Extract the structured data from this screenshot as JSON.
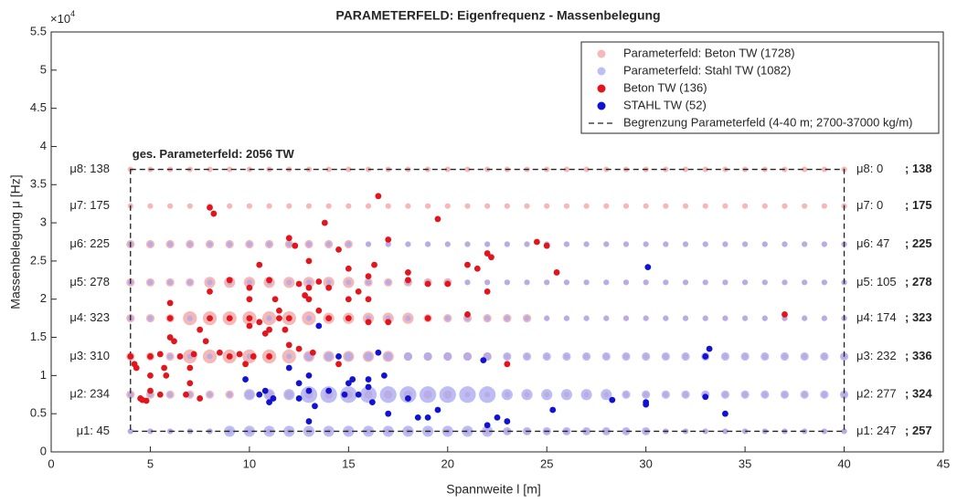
{
  "chart_data": {
    "type": "scatter",
    "title": "PARAMETERFELD: Eigenfrequenz - Massenbelegung",
    "xlabel": "Spannweite l [m]",
    "ylabel": "Massenbelegung μ [Hz]",
    "y_exponent": {
      "base": "×10",
      "power": "4"
    },
    "annotation": "ges. Parameterfeld: 2056 TW",
    "xlim": [
      0,
      45
    ],
    "xticks": [
      0,
      5,
      10,
      15,
      20,
      25,
      30,
      35,
      40,
      45
    ],
    "ylim": [
      0,
      55000
    ],
    "yticks": [
      0,
      {
        "value": 5000,
        "label": "0.5"
      },
      {
        "value": 10000,
        "label": "1"
      },
      {
        "value": 15000,
        "label": "1.5"
      },
      {
        "value": 20000,
        "label": "2"
      },
      {
        "value": 25000,
        "label": "2.5"
      },
      {
        "value": 30000,
        "label": "3"
      },
      {
        "value": 35000,
        "label": "3.5"
      },
      {
        "value": 40000,
        "label": "4"
      },
      {
        "value": 45000,
        "label": "4.5"
      },
      {
        "value": 50000,
        "label": "5"
      },
      {
        "value": 55000,
        "label": "5.5"
      }
    ],
    "legend": "upper right",
    "field": [
      {
        "name": "Parameterfeld: Beton TW (1728)",
        "color": "#f3a0a0",
        "x": [
          4,
          5,
          6,
          7,
          8,
          9,
          10,
          11,
          12,
          13,
          14,
          15,
          16,
          17,
          18,
          19,
          20,
          21,
          22,
          23,
          24,
          25,
          26,
          27,
          28,
          29,
          30,
          31,
          32,
          33,
          34,
          35,
          36,
          37,
          38,
          39,
          40
        ],
        "rows": [
          2700,
          7500,
          12500,
          17500,
          22200,
          27200,
          32200,
          37000
        ],
        "sizes": [
          [
            1,
            1,
            1,
            1,
            1,
            1,
            1,
            1,
            1,
            1,
            1,
            1,
            1,
            1,
            1,
            1,
            1,
            1,
            1,
            1,
            1,
            1,
            1,
            1,
            1,
            1,
            1,
            1,
            1,
            1,
            1,
            1,
            1,
            1,
            1,
            1,
            1
          ],
          [
            2,
            2,
            2,
            2,
            2,
            2,
            2,
            2,
            2,
            2,
            2,
            2,
            2,
            2,
            2,
            2,
            2,
            1,
            1,
            1,
            1,
            1,
            1,
            1,
            1,
            1,
            1,
            1,
            1,
            1,
            1,
            1,
            1,
            1,
            1,
            1,
            1
          ],
          [
            2,
            2,
            2,
            4,
            4,
            4,
            4,
            4,
            4,
            3,
            3,
            3,
            3,
            3,
            2,
            2,
            2,
            2,
            2,
            1,
            1,
            1,
            1,
            1,
            1,
            1,
            1,
            1,
            1,
            1,
            1,
            1,
            1,
            1,
            1,
            1,
            1
          ],
          [
            2,
            2,
            2,
            4,
            4,
            4,
            4,
            4,
            4,
            4,
            3,
            3,
            3,
            3,
            3,
            2,
            2,
            2,
            2,
            2,
            2,
            1,
            1,
            1,
            1,
            1,
            1,
            1,
            1,
            1,
            1,
            1,
            1,
            1,
            1,
            1,
            1
          ],
          [
            2,
            2,
            2,
            2,
            3,
            3,
            3,
            3,
            3,
            3,
            3,
            3,
            2,
            2,
            2,
            2,
            2,
            1,
            1,
            1,
            1,
            1,
            1,
            1,
            1,
            1,
            1,
            1,
            1,
            1,
            1,
            1,
            1,
            1,
            1,
            1,
            1
          ],
          [
            2,
            2,
            2,
            2,
            2,
            2,
            2,
            2,
            2,
            2,
            2,
            2,
            1,
            1,
            1,
            1,
            1,
            1,
            1,
            1,
            1,
            1,
            1,
            1,
            1,
            1,
            1,
            1,
            1,
            1,
            1,
            1,
            1,
            1,
            1,
            1,
            1
          ],
          [
            1,
            1,
            1,
            1,
            1,
            1,
            1,
            1,
            1,
            1,
            1,
            1,
            1,
            1,
            1,
            1,
            1,
            1,
            1,
            1,
            1,
            1,
            1,
            1,
            1,
            1,
            1,
            1,
            1,
            1,
            1,
            1,
            1,
            1,
            1,
            1,
            1
          ],
          [
            1,
            1,
            1,
            1,
            1,
            1,
            1,
            1,
            1,
            1,
            1,
            1,
            1,
            1,
            1,
            1,
            1,
            1,
            1,
            1,
            1,
            1,
            1,
            1,
            1,
            1,
            1,
            1,
            1,
            1,
            1,
            1,
            1,
            1,
            1,
            1,
            1
          ]
        ]
      },
      {
        "name": "Parameterfeld: Stahl TW (1082)",
        "color": "#a8a8f2",
        "x": [
          4,
          5,
          6,
          7,
          8,
          9,
          10,
          11,
          12,
          13,
          14,
          15,
          16,
          17,
          18,
          19,
          20,
          21,
          22,
          23,
          24,
          25,
          26,
          27,
          28,
          29,
          30,
          31,
          32,
          33,
          34,
          35,
          36,
          37,
          38,
          39,
          40
        ],
        "rows": [
          2700,
          7500,
          12500,
          17500,
          22200,
          27200
        ],
        "sizes": [
          [
            1,
            1,
            1,
            1,
            1,
            3,
            3,
            3,
            3,
            3,
            3,
            3,
            3,
            3,
            3,
            3,
            3,
            3,
            3,
            2,
            2,
            2,
            2,
            2,
            2,
            2,
            2,
            1,
            1,
            1,
            1,
            1,
            1,
            1,
            1,
            1,
            1
          ],
          [
            1,
            1,
            1,
            1,
            1,
            1,
            3,
            3,
            3,
            5,
            5,
            5,
            5,
            5,
            5,
            5,
            5,
            5,
            5,
            3,
            3,
            3,
            3,
            3,
            3,
            2,
            2,
            2,
            2,
            2,
            2,
            2,
            2,
            2,
            2,
            2,
            2
          ],
          [
            1,
            1,
            1,
            1,
            1,
            1,
            1,
            1,
            1,
            2,
            2,
            2,
            2,
            2,
            2,
            2,
            2,
            2,
            2,
            2,
            2,
            2,
            2,
            2,
            2,
            2,
            2,
            2,
            2,
            2,
            2,
            2,
            2,
            2,
            2,
            2,
            2
          ],
          [
            1,
            1,
            1,
            1,
            1,
            1,
            1,
            1,
            1,
            1,
            1,
            1,
            1,
            1,
            1,
            1,
            1,
            1,
            1,
            1,
            1,
            1,
            1,
            1,
            1,
            1,
            1,
            1,
            1,
            1,
            1,
            1,
            1,
            1,
            1,
            1,
            1
          ],
          [
            1,
            1,
            1,
            1,
            1,
            1,
            1,
            1,
            1,
            1,
            1,
            1,
            1,
            1,
            1,
            1,
            1,
            1,
            1,
            1,
            1,
            1,
            1,
            1,
            1,
            1,
            1,
            1,
            1,
            1,
            1,
            1,
            1,
            1,
            1,
            1,
            1
          ],
          [
            1,
            1,
            1,
            1,
            1,
            1,
            1,
            1,
            1,
            1,
            1,
            1,
            1,
            1,
            1,
            1,
            1,
            1,
            1,
            1,
            1,
            1,
            1,
            1,
            1,
            1,
            1,
            1,
            1,
            1,
            1,
            1,
            1,
            1,
            1,
            1,
            1
          ]
        ]
      }
    ],
    "series": [
      {
        "name": "Beton TW (136)",
        "color": "#e4141c",
        "x": [
          4,
          4.2,
          4.3,
          4.5,
          4.6,
          4.8,
          5,
          5,
          5,
          5.5,
          5.5,
          5.7,
          5.8,
          6,
          6,
          6,
          6.2,
          6.5,
          6.8,
          7,
          7,
          7.2,
          7.5,
          7.5,
          7.8,
          8,
          8,
          8,
          8.2,
          8.5,
          9,
          9,
          9,
          9.5,
          9.8,
          10,
          10,
          10,
          10,
          10.2,
          10.5,
          10.5,
          10.8,
          11,
          11,
          11,
          11.3,
          11.5,
          11.5,
          11.8,
          12,
          12,
          12,
          12.3,
          12.5,
          12.5,
          12.8,
          13,
          13,
          13,
          13.2,
          13.5,
          13.5,
          13.8,
          14,
          14,
          14.5,
          14.5,
          15,
          15,
          15,
          15.5,
          16,
          16,
          16,
          16.3,
          16.5,
          17,
          17,
          18,
          18,
          19,
          19,
          19.5,
          20,
          21,
          21,
          21.5,
          22,
          22,
          22.2,
          23,
          24.5,
          25,
          25.5,
          37
        ],
        "values": [
          12500,
          11500,
          11000,
          7000,
          6800,
          6700,
          8000,
          10000,
          12500,
          12800,
          7500,
          11000,
          10000,
          15000,
          17500,
          19500,
          14500,
          12500,
          7500,
          9000,
          11000,
          12800,
          7000,
          16000,
          14500,
          17500,
          21000,
          32000,
          31200,
          13000,
          12500,
          17500,
          22500,
          12800,
          11500,
          16500,
          17500,
          20000,
          21500,
          12500,
          24500,
          17000,
          15500,
          12500,
          16000,
          22500,
          20000,
          17500,
          18500,
          16000,
          28000,
          17500,
          14000,
          27000,
          13500,
          22000,
          20500,
          20000,
          21500,
          25000,
          13000,
          22300,
          18500,
          30000,
          21500,
          17500,
          26500,
          11500,
          24000,
          17500,
          20000,
          21000,
          23000,
          20000,
          17000,
          24500,
          33500,
          27800,
          17000,
          22500,
          23500,
          22000,
          17500,
          30500,
          22000,
          18000,
          24500,
          24000,
          26000,
          21000,
          25500,
          11500,
          27500,
          27000,
          23500,
          18000
        ]
      },
      {
        "name": "STAHL TW (52)",
        "color": "#1212d2",
        "x": [
          9.8,
          10.5,
          10.8,
          11,
          11.2,
          12,
          12.5,
          12.5,
          13,
          13,
          13,
          13.3,
          13.5,
          14,
          14.5,
          14.8,
          15,
          15.2,
          15.5,
          16,
          16.2,
          16,
          16.5,
          16.8,
          17,
          18,
          18.5,
          19,
          19.5,
          21.8,
          22,
          22.5,
          23,
          25.3,
          28.3,
          30,
          30,
          30.1,
          33,
          33.2,
          33,
          34
        ],
        "values": [
          9500,
          7500,
          8000,
          6500,
          7000,
          11000,
          7000,
          9000,
          10000,
          8000,
          4000,
          6000,
          16500,
          8000,
          12500,
          7500,
          9000,
          9500,
          7500,
          9500,
          6500,
          8500,
          13000,
          10000,
          5000,
          7000,
          4500,
          4500,
          5500,
          12000,
          3500,
          4500,
          4000,
          5500,
          6800,
          6200,
          6500,
          24200,
          12500,
          13500,
          7200,
          5000
        ]
      }
    ],
    "boundary": {
      "name": "Begrenzung Parameterfeld (4-40 m; 2700-37000 kg/m)",
      "xlim": [
        4,
        40
      ],
      "ylim": [
        2700,
        37000
      ]
    },
    "row_labels_beton": [
      "μ1: 45",
      "μ2: 234",
      "μ3: 310",
      "μ4: 323",
      "μ5: 278",
      "μ6: 225",
      "μ7: 175",
      "μ8: 138"
    ],
    "row_labels_stahl": [
      "μ1: 247",
      "μ2: 277",
      "μ3: 232",
      "μ4: 174",
      "μ5: 105",
      "μ6: 47",
      "μ7: 0",
      "μ8: 0"
    ],
    "row_labels_total": [
      "; 257",
      "; 324",
      "; 336",
      "; 323",
      "; 278",
      "; 225",
      "; 175",
      "; 138"
    ]
  }
}
